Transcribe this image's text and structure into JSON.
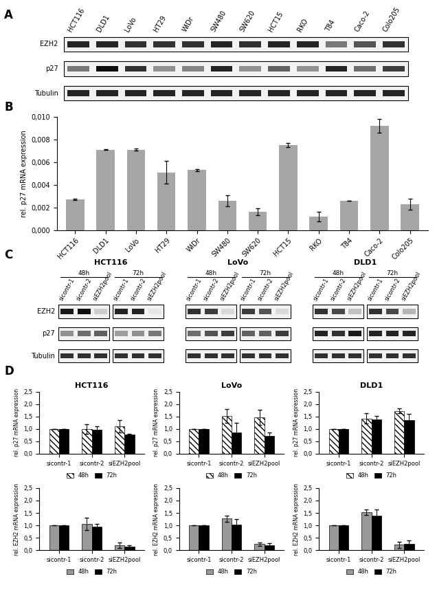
{
  "panel_letters": [
    "A",
    "B",
    "C",
    "D"
  ],
  "blot_A": {
    "lanes": [
      "HCT116",
      "DLD1",
      "LoVo",
      "HT29",
      "WiDr",
      "SW480",
      "SW620",
      "HCT15",
      "RKO",
      "T84",
      "Caco-2",
      "Colo205"
    ],
    "rows": [
      "EZH2",
      "p27",
      "Tubulin"
    ],
    "intensity": [
      [
        0.85,
        0.85,
        0.8,
        0.8,
        0.8,
        0.85,
        0.8,
        0.85,
        0.85,
        0.5,
        0.65,
        0.8
      ],
      [
        0.5,
        0.95,
        0.8,
        0.4,
        0.45,
        0.85,
        0.4,
        0.6,
        0.4,
        0.85,
        0.55,
        0.75
      ],
      [
        0.85,
        0.85,
        0.85,
        0.85,
        0.85,
        0.85,
        0.85,
        0.85,
        0.85,
        0.85,
        0.85,
        0.85
      ]
    ]
  },
  "blot_C": {
    "rows": [
      "EZH2",
      "p27",
      "Tubulin"
    ],
    "groups": [
      {
        "cell_line": "HCT116",
        "times": [
          {
            "time": "48h",
            "lanes": [
              "sicontr-1",
              "sicontr-2",
              "siEZH2pool"
            ]
          },
          {
            "time": "72h",
            "lanes": [
              "sicontr-1",
              "sicontr-2",
              "siEZH2pool"
            ]
          }
        ],
        "intensity": [
          [
            0.9,
            0.95,
            0.15,
            0.85,
            0.85,
            0.05
          ],
          [
            0.4,
            0.55,
            0.6,
            0.35,
            0.4,
            0.5
          ],
          [
            0.8,
            0.8,
            0.8,
            0.8,
            0.8,
            0.8
          ]
        ]
      },
      {
        "cell_line": "LoVo",
        "times": [
          {
            "time": "48h",
            "lanes": [
              "sicontr-1",
              "sicontr-2",
              "siEZH2pool"
            ]
          },
          {
            "time": "72h",
            "lanes": [
              "sicontr-1",
              "sicontr-2",
              "siEZH2pool"
            ]
          }
        ],
        "intensity": [
          [
            0.8,
            0.75,
            0.1,
            0.75,
            0.65,
            0.1
          ],
          [
            0.55,
            0.65,
            0.75,
            0.6,
            0.6,
            0.75
          ],
          [
            0.8,
            0.8,
            0.8,
            0.8,
            0.8,
            0.8
          ]
        ]
      },
      {
        "cell_line": "DLD1",
        "times": [
          {
            "time": "48h",
            "lanes": [
              "sicontr-1",
              "sicontr-2",
              "siEZH2pool"
            ]
          },
          {
            "time": "72h",
            "lanes": [
              "sicontr-1",
              "sicontr-2",
              "siEZH2pool"
            ]
          }
        ],
        "intensity": [
          [
            0.8,
            0.7,
            0.2,
            0.8,
            0.7,
            0.25
          ],
          [
            0.85,
            0.8,
            0.9,
            0.85,
            0.85,
            0.85
          ],
          [
            0.8,
            0.8,
            0.8,
            0.8,
            0.8,
            0.8
          ]
        ]
      }
    ]
  },
  "chart_data": [
    {
      "type": "bar",
      "y_label": "rel. p27 mRNA expression",
      "categories": [
        "HCT116",
        "DLD1",
        "LoVo",
        "HT29",
        "WiDr",
        "SW480",
        "SW620",
        "HCT15",
        "RKO",
        "T84",
        "Caco-2",
        "Colo205"
      ],
      "values": [
        0.0027,
        0.0071,
        0.0071,
        0.0051,
        0.0053,
        0.0026,
        0.0016,
        0.0075,
        0.0012,
        0.0026,
        0.0092,
        0.0023
      ],
      "errors": [
        5e-05,
        2e-05,
        0.0001,
        0.001,
        0.0001,
        0.0005,
        0.0003,
        0.0002,
        0.0004,
        2e-05,
        0.0006,
        0.0005
      ],
      "color": "#a6a6a6",
      "ylim": [
        0,
        0.01
      ],
      "yticks": [
        {
          "value": 0,
          "label": "0,000"
        },
        {
          "value": 0.002,
          "label": "0,002"
        },
        {
          "value": 0.004,
          "label": "0,004"
        },
        {
          "value": 0.006,
          "label": "0,006"
        },
        {
          "value": 0.008,
          "label": "0,008"
        },
        {
          "value": 0.01,
          "label": "0,010"
        }
      ]
    },
    {
      "type": "bar",
      "title": "HCT116",
      "y_label": "rel. p27 mRNA expression",
      "categories": [
        "sicontr-1",
        "sicontr-2",
        "siEZH2pool"
      ],
      "series": [
        {
          "name": "48h",
          "color": "#ffffff",
          "values": [
            1.0,
            1.0,
            1.12
          ],
          "errors": [
            0,
            0.2,
            0.25
          ]
        },
        {
          "name": "72h",
          "color": "#000000",
          "values": [
            1.0,
            0.97,
            0.78
          ],
          "errors": [
            0,
            0.15,
            0.03
          ]
        }
      ],
      "ylim": [
        0,
        2.5
      ],
      "yticks": [
        {
          "value": 0,
          "label": "0,0"
        },
        {
          "value": 0.5,
          "label": "0,5"
        },
        {
          "value": 1.0,
          "label": "1,0"
        },
        {
          "value": 1.5,
          "label": "1,5"
        },
        {
          "value": 2.0,
          "label": "2,0"
        },
        {
          "value": 2.5,
          "label": "2,5"
        }
      ],
      "legend": "upper center"
    },
    {
      "type": "bar",
      "title": "LoVo",
      "y_label": "rel. p27 mRNA expression",
      "categories": [
        "sicontr-1",
        "sicontr-2",
        "siEZH2pool"
      ],
      "series": [
        {
          "name": "48h",
          "color": "#ffffff",
          "values": [
            1.0,
            1.52,
            1.47
          ],
          "errors": [
            0,
            0.28,
            0.3
          ]
        },
        {
          "name": "72h",
          "color": "#000000",
          "values": [
            1.0,
            0.85,
            0.72
          ],
          "errors": [
            0,
            0.4,
            0.15
          ]
        }
      ],
      "ylim": [
        0,
        2.5
      ],
      "yticks": [
        {
          "value": 0,
          "label": "0,0"
        },
        {
          "value": 0.5,
          "label": "0,5"
        },
        {
          "value": 1.0,
          "label": "1,0"
        },
        {
          "value": 1.5,
          "label": "1,5"
        },
        {
          "value": 2.0,
          "label": "2,0"
        },
        {
          "value": 2.5,
          "label": "2,5"
        }
      ],
      "legend": "upper center"
    },
    {
      "type": "bar",
      "title": "DLD1",
      "y_label": "rel. p27 mRNA expression",
      "categories": [
        "sicontr-1",
        "sicontr-2",
        "siEZH2pool"
      ],
      "series": [
        {
          "name": "48h",
          "color": "#ffffff",
          "values": [
            1.0,
            1.42,
            1.72
          ],
          "errors": [
            0,
            0.2,
            0.1
          ]
        },
        {
          "name": "72h",
          "color": "#000000",
          "values": [
            1.0,
            1.38,
            1.35
          ],
          "errors": [
            0,
            0.15,
            0.25
          ]
        }
      ],
      "ylim": [
        0,
        2.5
      ],
      "yticks": [
        {
          "value": 0,
          "label": "0,0"
        },
        {
          "value": 0.5,
          "label": "0,5"
        },
        {
          "value": 1.0,
          "label": "1,0"
        },
        {
          "value": 1.5,
          "label": "1,5"
        },
        {
          "value": 2.0,
          "label": "2,0"
        },
        {
          "value": 2.5,
          "label": "2,5"
        }
      ],
      "legend": "upper center"
    },
    {
      "type": "bar",
      "y_label": "rel. EZH2 mRNA expression",
      "categories": [
        "sicontr-1",
        "sicontr-2",
        "siEZH2pool"
      ],
      "series": [
        {
          "name": "48h",
          "color": "#999999",
          "values": [
            1.0,
            1.05,
            0.2
          ],
          "errors": [
            0,
            0.25,
            0.1
          ]
        },
        {
          "name": "72h",
          "color": "#000000",
          "values": [
            1.0,
            0.95,
            0.13
          ],
          "errors": [
            0,
            0.12,
            0.07
          ]
        }
      ],
      "ylim": [
        0,
        2.5
      ],
      "yticks": [
        {
          "value": 0,
          "label": "0,0"
        },
        {
          "value": 0.5,
          "label": "0,5"
        },
        {
          "value": 1.0,
          "label": "1,0"
        },
        {
          "value": 1.5,
          "label": "1,5"
        },
        {
          "value": 2.0,
          "label": "2,0"
        },
        {
          "value": 2.5,
          "label": "2,5"
        }
      ],
      "legend": "upper center"
    },
    {
      "type": "bar",
      "y_label": "rel. EZH2 mRNA expression",
      "categories": [
        "sicontr-1",
        "sicontr-2",
        "siEZH2pool"
      ],
      "series": [
        {
          "name": "48h",
          "color": "#999999",
          "values": [
            1.0,
            1.27,
            0.25
          ],
          "errors": [
            0,
            0.12,
            0.07
          ]
        },
        {
          "name": "72h",
          "color": "#000000",
          "values": [
            1.0,
            1.02,
            0.2
          ],
          "errors": [
            0,
            0.22,
            0.08
          ]
        }
      ],
      "ylim": [
        0,
        2.5
      ],
      "yticks": [
        {
          "value": 0,
          "label": "0,0"
        },
        {
          "value": 0.5,
          "label": "0,5"
        },
        {
          "value": 1.0,
          "label": "1,0"
        },
        {
          "value": 1.5,
          "label": "1,5"
        },
        {
          "value": 2.0,
          "label": "2,0"
        },
        {
          "value": 2.5,
          "label": "2,5"
        }
      ],
      "legend": "upper center"
    },
    {
      "type": "bar",
      "y_label": "rel. EZH2 mRNA expression",
      "categories": [
        "sicontr-1",
        "sicontr-2",
        "siEZH2pool"
      ],
      "series": [
        {
          "name": "48h",
          "color": "#999999",
          "values": [
            1.0,
            1.53,
            0.22
          ],
          "errors": [
            0,
            0.1,
            0.13
          ]
        },
        {
          "name": "72h",
          "color": "#000000",
          "values": [
            1.0,
            1.38,
            0.25
          ],
          "errors": [
            0,
            0.25,
            0.13
          ]
        }
      ],
      "ylim": [
        0,
        2.5
      ],
      "yticks": [
        {
          "value": 0,
          "label": "0,0"
        },
        {
          "value": 0.5,
          "label": "0,5"
        },
        {
          "value": 1.0,
          "label": "1,0"
        },
        {
          "value": 1.5,
          "label": "1,5"
        },
        {
          "value": 2.0,
          "label": "2,0"
        },
        {
          "value": 2.5,
          "label": "2,5"
        }
      ],
      "legend": "upper center"
    }
  ]
}
